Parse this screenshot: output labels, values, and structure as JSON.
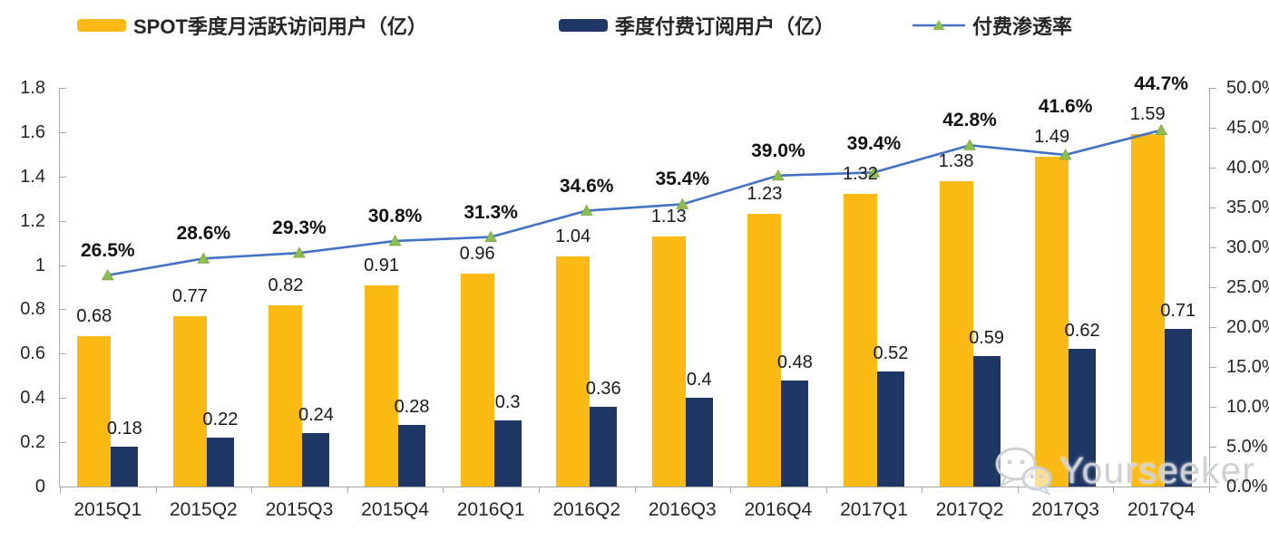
{
  "chart_data": {
    "type": "bar",
    "combo": "grouped bars (left axis) + line with triangle markers (right axis)",
    "title": "",
    "categories": [
      "2015Q1",
      "2015Q2",
      "2015Q3",
      "2015Q4",
      "2016Q1",
      "2016Q2",
      "2016Q3",
      "2016Q4",
      "2017Q1",
      "2017Q2",
      "2017Q3",
      "2017Q4"
    ],
    "series": [
      {
        "name": "SPOT季度月活跃访问用户（亿）",
        "type": "bar",
        "axis": "left",
        "color": "#FBB913",
        "values": [
          0.68,
          0.77,
          0.82,
          0.91,
          0.96,
          1.04,
          1.13,
          1.23,
          1.32,
          1.38,
          1.49,
          1.59
        ],
        "labels": [
          "0.68",
          "0.77",
          "0.82",
          "0.91",
          "0.96",
          "1.04",
          "1.13",
          "1.23",
          "1.32",
          "1.38",
          "1.49",
          "1.59"
        ]
      },
      {
        "name": "季度付费订阅用户（亿）",
        "type": "bar",
        "axis": "left",
        "color": "#1E3765",
        "values": [
          0.18,
          0.22,
          0.24,
          0.28,
          0.3,
          0.36,
          0.4,
          0.48,
          0.52,
          0.59,
          0.62,
          0.71
        ],
        "labels": [
          "0.18",
          "0.22",
          "0.24",
          "0.28",
          "0.3",
          "0.36",
          "0.4",
          "0.48",
          "0.52",
          "0.59",
          "0.62",
          "0.71"
        ]
      },
      {
        "name": "付费渗透率",
        "type": "line",
        "axis": "right",
        "color": "#4472C4",
        "marker": "triangle",
        "marker_color": "#8CBE50",
        "values": [
          26.5,
          28.6,
          29.3,
          30.8,
          31.3,
          34.6,
          35.4,
          39.0,
          39.4,
          42.8,
          41.6,
          44.7
        ],
        "labels": [
          "26.5%",
          "28.6%",
          "29.3%",
          "30.8%",
          "31.3%",
          "34.6%",
          "35.4%",
          "39.0%",
          "39.4%",
          "42.8%",
          "41.6%",
          "44.7%"
        ]
      }
    ],
    "left_axis": {
      "min": 0,
      "max": 1.8,
      "tick_labels": [
        "1.8",
        "1.6",
        "1.4",
        "1.2",
        "1",
        "0.8",
        "0.6",
        "0.4",
        "0.2",
        "0"
      ]
    },
    "right_axis": {
      "min": 0,
      "max": 50,
      "tick_labels": [
        "50.0%",
        "45.0%",
        "40.0%",
        "35.0%",
        "30.0%",
        "25.0%",
        "20.0%",
        "15.0%",
        "10.0%",
        "5.0%",
        "0.0%"
      ]
    },
    "grid": false,
    "legend_position": "top",
    "axis_color": "#A8A8A8",
    "label_color": "#1A1A1A"
  },
  "watermark": {
    "text": "Yourseeker",
    "icon": "wechat-chat-bubbles-icon",
    "color": "#CDD0D4"
  }
}
